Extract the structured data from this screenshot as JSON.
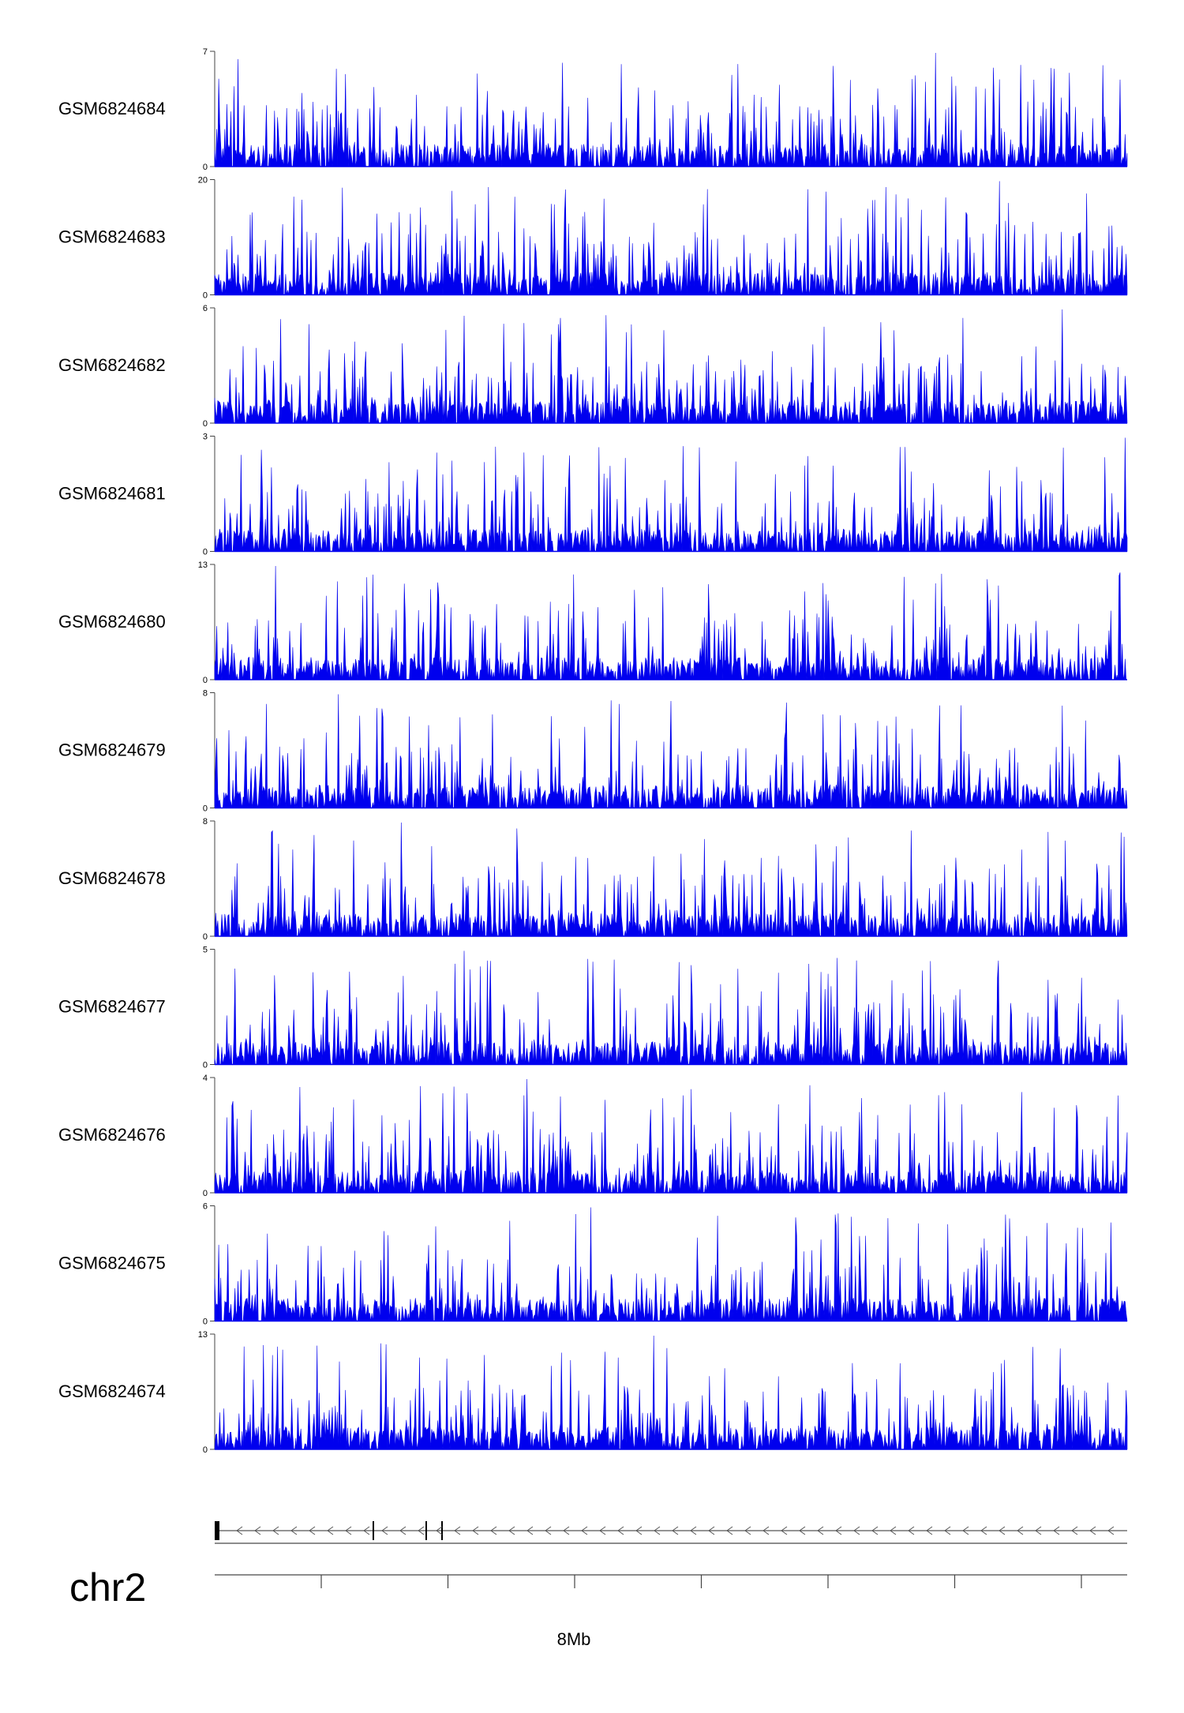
{
  "chart_data": {
    "type": "area",
    "title": "",
    "xlabel": "",
    "ylabel": "",
    "signal_color": "#0000ee",
    "chromosome": "chr2",
    "genomic_axis": {
      "major_tick_label": "8Mb",
      "tick_count": 8
    },
    "gene_track": {
      "strand": "-"
    },
    "tracks": [
      {
        "name": "GSM6824684",
        "ymax": "7",
        "ymin": "0",
        "peak": 7
      },
      {
        "name": "GSM6824683",
        "ymax": "20",
        "ymin": "0",
        "peak": 20
      },
      {
        "name": "GSM6824682",
        "ymax": "6",
        "ymin": "0",
        "peak": 6
      },
      {
        "name": "GSM6824681",
        "ymax": "3",
        "ymin": "0",
        "peak": 3
      },
      {
        "name": "GSM6824680",
        "ymax": "13",
        "ymin": "0",
        "peak": 13
      },
      {
        "name": "GSM6824679",
        "ymax": "8",
        "ymin": "0",
        "peak": 8
      },
      {
        "name": "GSM6824678",
        "ymax": "8",
        "ymin": "0",
        "peak": 8
      },
      {
        "name": "GSM6824677",
        "ymax": "5",
        "ymin": "0",
        "peak": 5
      },
      {
        "name": "GSM6824676",
        "ymax": "4",
        "ymin": "0",
        "peak": 4
      },
      {
        "name": "GSM6824675",
        "ymax": "6",
        "ymin": "0",
        "peak": 6
      },
      {
        "name": "GSM6824674",
        "ymax": "13",
        "ymin": "0",
        "peak": 13
      }
    ]
  }
}
